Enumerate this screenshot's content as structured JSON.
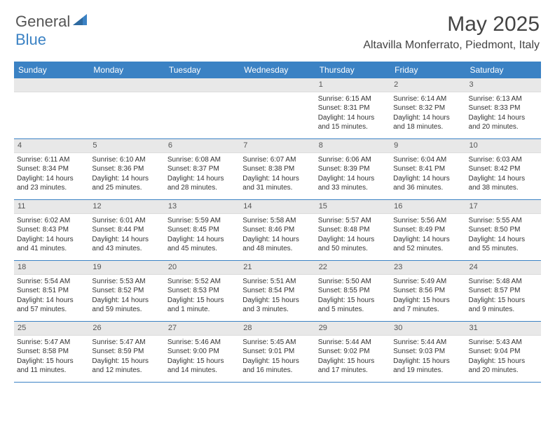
{
  "logo": {
    "word1": "General",
    "word2": "Blue"
  },
  "title": "May 2025",
  "location": "Altavilla Monferrato, Piedmont, Italy",
  "colors": {
    "accent": "#3b82c4",
    "band": "#e8e8e8",
    "text": "#333333",
    "title_text": "#444444"
  },
  "day_headers": [
    "Sunday",
    "Monday",
    "Tuesday",
    "Wednesday",
    "Thursday",
    "Friday",
    "Saturday"
  ],
  "weeks": [
    [
      {
        "n": "",
        "sunrise": "",
        "sunset": "",
        "daylight": ""
      },
      {
        "n": "",
        "sunrise": "",
        "sunset": "",
        "daylight": ""
      },
      {
        "n": "",
        "sunrise": "",
        "sunset": "",
        "daylight": ""
      },
      {
        "n": "",
        "sunrise": "",
        "sunset": "",
        "daylight": ""
      },
      {
        "n": "1",
        "sunrise": "Sunrise: 6:15 AM",
        "sunset": "Sunset: 8:31 PM",
        "daylight": "Daylight: 14 hours and 15 minutes."
      },
      {
        "n": "2",
        "sunrise": "Sunrise: 6:14 AM",
        "sunset": "Sunset: 8:32 PM",
        "daylight": "Daylight: 14 hours and 18 minutes."
      },
      {
        "n": "3",
        "sunrise": "Sunrise: 6:13 AM",
        "sunset": "Sunset: 8:33 PM",
        "daylight": "Daylight: 14 hours and 20 minutes."
      }
    ],
    [
      {
        "n": "4",
        "sunrise": "Sunrise: 6:11 AM",
        "sunset": "Sunset: 8:34 PM",
        "daylight": "Daylight: 14 hours and 23 minutes."
      },
      {
        "n": "5",
        "sunrise": "Sunrise: 6:10 AM",
        "sunset": "Sunset: 8:36 PM",
        "daylight": "Daylight: 14 hours and 25 minutes."
      },
      {
        "n": "6",
        "sunrise": "Sunrise: 6:08 AM",
        "sunset": "Sunset: 8:37 PM",
        "daylight": "Daylight: 14 hours and 28 minutes."
      },
      {
        "n": "7",
        "sunrise": "Sunrise: 6:07 AM",
        "sunset": "Sunset: 8:38 PM",
        "daylight": "Daylight: 14 hours and 31 minutes."
      },
      {
        "n": "8",
        "sunrise": "Sunrise: 6:06 AM",
        "sunset": "Sunset: 8:39 PM",
        "daylight": "Daylight: 14 hours and 33 minutes."
      },
      {
        "n": "9",
        "sunrise": "Sunrise: 6:04 AM",
        "sunset": "Sunset: 8:41 PM",
        "daylight": "Daylight: 14 hours and 36 minutes."
      },
      {
        "n": "10",
        "sunrise": "Sunrise: 6:03 AM",
        "sunset": "Sunset: 8:42 PM",
        "daylight": "Daylight: 14 hours and 38 minutes."
      }
    ],
    [
      {
        "n": "11",
        "sunrise": "Sunrise: 6:02 AM",
        "sunset": "Sunset: 8:43 PM",
        "daylight": "Daylight: 14 hours and 41 minutes."
      },
      {
        "n": "12",
        "sunrise": "Sunrise: 6:01 AM",
        "sunset": "Sunset: 8:44 PM",
        "daylight": "Daylight: 14 hours and 43 minutes."
      },
      {
        "n": "13",
        "sunrise": "Sunrise: 5:59 AM",
        "sunset": "Sunset: 8:45 PM",
        "daylight": "Daylight: 14 hours and 45 minutes."
      },
      {
        "n": "14",
        "sunrise": "Sunrise: 5:58 AM",
        "sunset": "Sunset: 8:46 PM",
        "daylight": "Daylight: 14 hours and 48 minutes."
      },
      {
        "n": "15",
        "sunrise": "Sunrise: 5:57 AM",
        "sunset": "Sunset: 8:48 PM",
        "daylight": "Daylight: 14 hours and 50 minutes."
      },
      {
        "n": "16",
        "sunrise": "Sunrise: 5:56 AM",
        "sunset": "Sunset: 8:49 PM",
        "daylight": "Daylight: 14 hours and 52 minutes."
      },
      {
        "n": "17",
        "sunrise": "Sunrise: 5:55 AM",
        "sunset": "Sunset: 8:50 PM",
        "daylight": "Daylight: 14 hours and 55 minutes."
      }
    ],
    [
      {
        "n": "18",
        "sunrise": "Sunrise: 5:54 AM",
        "sunset": "Sunset: 8:51 PM",
        "daylight": "Daylight: 14 hours and 57 minutes."
      },
      {
        "n": "19",
        "sunrise": "Sunrise: 5:53 AM",
        "sunset": "Sunset: 8:52 PM",
        "daylight": "Daylight: 14 hours and 59 minutes."
      },
      {
        "n": "20",
        "sunrise": "Sunrise: 5:52 AM",
        "sunset": "Sunset: 8:53 PM",
        "daylight": "Daylight: 15 hours and 1 minute."
      },
      {
        "n": "21",
        "sunrise": "Sunrise: 5:51 AM",
        "sunset": "Sunset: 8:54 PM",
        "daylight": "Daylight: 15 hours and 3 minutes."
      },
      {
        "n": "22",
        "sunrise": "Sunrise: 5:50 AM",
        "sunset": "Sunset: 8:55 PM",
        "daylight": "Daylight: 15 hours and 5 minutes."
      },
      {
        "n": "23",
        "sunrise": "Sunrise: 5:49 AM",
        "sunset": "Sunset: 8:56 PM",
        "daylight": "Daylight: 15 hours and 7 minutes."
      },
      {
        "n": "24",
        "sunrise": "Sunrise: 5:48 AM",
        "sunset": "Sunset: 8:57 PM",
        "daylight": "Daylight: 15 hours and 9 minutes."
      }
    ],
    [
      {
        "n": "25",
        "sunrise": "Sunrise: 5:47 AM",
        "sunset": "Sunset: 8:58 PM",
        "daylight": "Daylight: 15 hours and 11 minutes."
      },
      {
        "n": "26",
        "sunrise": "Sunrise: 5:47 AM",
        "sunset": "Sunset: 8:59 PM",
        "daylight": "Daylight: 15 hours and 12 minutes."
      },
      {
        "n": "27",
        "sunrise": "Sunrise: 5:46 AM",
        "sunset": "Sunset: 9:00 PM",
        "daylight": "Daylight: 15 hours and 14 minutes."
      },
      {
        "n": "28",
        "sunrise": "Sunrise: 5:45 AM",
        "sunset": "Sunset: 9:01 PM",
        "daylight": "Daylight: 15 hours and 16 minutes."
      },
      {
        "n": "29",
        "sunrise": "Sunrise: 5:44 AM",
        "sunset": "Sunset: 9:02 PM",
        "daylight": "Daylight: 15 hours and 17 minutes."
      },
      {
        "n": "30",
        "sunrise": "Sunrise: 5:44 AM",
        "sunset": "Sunset: 9:03 PM",
        "daylight": "Daylight: 15 hours and 19 minutes."
      },
      {
        "n": "31",
        "sunrise": "Sunrise: 5:43 AM",
        "sunset": "Sunset: 9:04 PM",
        "daylight": "Daylight: 15 hours and 20 minutes."
      }
    ]
  ]
}
